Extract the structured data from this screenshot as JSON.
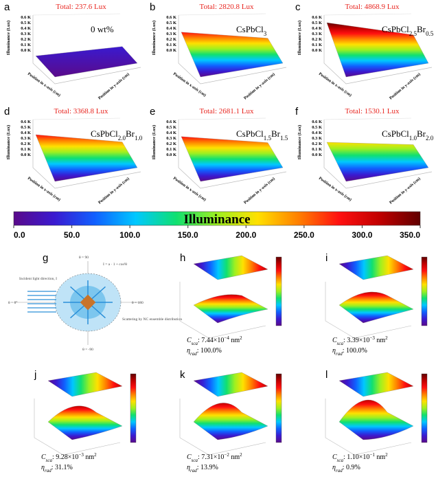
{
  "top_panels": [
    {
      "letter": "a",
      "total": "Total: 237.6 Lux",
      "formula": [
        "0 wt%"
      ]
    },
    {
      "letter": "b",
      "total": "Total: 2820.8 Lux",
      "formula": [
        "CsPbCl",
        "3"
      ]
    },
    {
      "letter": "c",
      "total": "Total: 4868.9 Lux",
      "formula": [
        "CsPbCl",
        "2.5",
        "Br",
        "0.5"
      ]
    },
    {
      "letter": "d",
      "total": "Total: 3368.8 Lux",
      "formula": [
        "CsPbCl",
        "2.0",
        "Br",
        "1.0"
      ]
    },
    {
      "letter": "e",
      "total": "Total: 2681.1 Lux",
      "formula": [
        "CsPbCl",
        "1.5",
        "Br",
        "1.5"
      ]
    },
    {
      "letter": "f",
      "total": "Total: 1530.1 Lux",
      "formula": [
        "CsPbCl",
        "1.0",
        "Br",
        "2.0"
      ]
    }
  ],
  "surface_axes": {
    "z_label": "Illuminance (Lux)",
    "x_label": "Position in x-axis (cm)",
    "y_label": "Position in y-axis (cm)",
    "zticks": [
      "0.6 K",
      "0.5 K",
      "0.4 K",
      "0.3 K",
      "0.2 K",
      "0.1 K",
      "0.0 K"
    ]
  },
  "colorbar": {
    "title": "Illuminance",
    "lim": [
      0,
      350
    ],
    "ticks": [
      {
        "value": 0,
        "label": "0.0"
      },
      {
        "value": 50,
        "label": "50.0"
      },
      {
        "value": 100,
        "label": "100.0"
      },
      {
        "value": 150,
        "label": "150.0"
      },
      {
        "value": 200,
        "label": "200.0"
      },
      {
        "value": 250,
        "label": "250.0"
      },
      {
        "value": 300,
        "label": "300.0"
      },
      {
        "value": 350,
        "label": "350.0"
      }
    ]
  },
  "diagram": {
    "letter": "g",
    "top": "θ = 90",
    "formula": "I = a · 1 + cos²θ",
    "incident": "Incident light direction, I",
    "left": "θ = 0°",
    "right": "θ = 180",
    "scatter": "Scattering by NC ensemble distribution",
    "bottom": "θ = -90"
  },
  "scatter_panels": [
    {
      "letter": "h",
      "c_symbol": "C",
      "c_sub": "sca",
      "c_text": ": 7.44×10",
      "c_exp": "−4",
      "c_unit": " nm",
      "c_unit_exp": "2",
      "eta_symbol": "η",
      "eta_sub": "rad",
      "eta_text": ": 100.0%"
    },
    {
      "letter": "i",
      "c_symbol": "C",
      "c_sub": "sca",
      "c_text": ": 3.39×10",
      "c_exp": "−3",
      "c_unit": " nm",
      "c_unit_exp": "2",
      "eta_symbol": "η",
      "eta_sub": "rad",
      "eta_text": ": 100.0%"
    },
    {
      "letter": "j",
      "c_symbol": "C",
      "c_sub": "sca",
      "c_text": ": 9.28×10",
      "c_exp": "−3",
      "c_unit": " nm",
      "c_unit_exp": "2",
      "eta_symbol": "η",
      "eta_sub": "rad",
      "eta_text": ": 31.1%"
    },
    {
      "letter": "k",
      "c_symbol": "C",
      "c_sub": "sca",
      "c_text": ": 7.31×10",
      "c_exp": "−2",
      "c_unit": " nm",
      "c_unit_exp": "2",
      "eta_symbol": "η",
      "eta_sub": "rad",
      "eta_text": ": 13.9%"
    },
    {
      "letter": "l",
      "c_symbol": "C",
      "c_sub": "sca",
      "c_text": ": 1.10×10",
      "c_exp": "−1",
      "c_unit": " nm",
      "c_unit_exp": "2",
      "eta_symbol": "η",
      "eta_sub": "rad",
      "eta_text": ": 0.9%"
    }
  ]
}
